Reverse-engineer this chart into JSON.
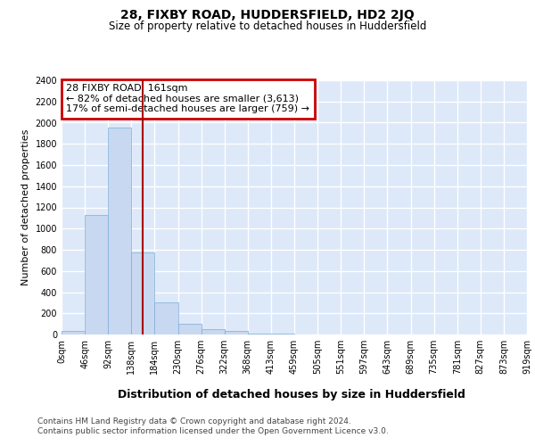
{
  "title": "28, FIXBY ROAD, HUDDERSFIELD, HD2 2JQ",
  "subtitle": "Size of property relative to detached houses in Huddersfield",
  "xlabel": "Distribution of detached houses by size in Huddersfield",
  "ylabel": "Number of detached properties",
  "footer_line1": "Contains HM Land Registry data © Crown copyright and database right 2024.",
  "footer_line2": "Contains public sector information licensed under the Open Government Licence v3.0.",
  "bin_edges": [
    0,
    46,
    92,
    138,
    184,
    230,
    276,
    322,
    368,
    413,
    459,
    505,
    551,
    597,
    643,
    689,
    735,
    781,
    827,
    873,
    919
  ],
  "bin_labels": [
    "0sqm",
    "46sqm",
    "92sqm",
    "138sqm",
    "184sqm",
    "230sqm",
    "276sqm",
    "322sqm",
    "368sqm",
    "413sqm",
    "459sqm",
    "505sqm",
    "551sqm",
    "597sqm",
    "643sqm",
    "689sqm",
    "735sqm",
    "781sqm",
    "827sqm",
    "873sqm",
    "919sqm"
  ],
  "bar_heights": [
    30,
    1130,
    1950,
    775,
    300,
    100,
    50,
    30,
    10,
    5,
    3,
    2,
    1,
    1,
    1,
    1,
    0,
    0,
    0,
    0
  ],
  "bar_color": "#c8d8f0",
  "bar_edgecolor": "#7aaed8",
  "property_size": 161,
  "annotation_line1": "28 FIXBY ROAD: 161sqm",
  "annotation_line2": "← 82% of detached houses are smaller (3,613)",
  "annotation_line3": "17% of semi-detached houses are larger (759) →",
  "vline_color": "#aa0000",
  "annotation_box_edgecolor": "#cc0000",
  "ylim": [
    0,
    2400
  ],
  "yticks": [
    0,
    200,
    400,
    600,
    800,
    1000,
    1200,
    1400,
    1600,
    1800,
    2000,
    2200,
    2400
  ],
  "background_color": "#dde8f8",
  "grid_color": "#ffffff",
  "title_fontsize": 10,
  "subtitle_fontsize": 8.5,
  "ylabel_fontsize": 8,
  "xlabel_fontsize": 9,
  "tick_fontsize": 7,
  "annotation_fontsize": 8,
  "footer_fontsize": 6.5
}
